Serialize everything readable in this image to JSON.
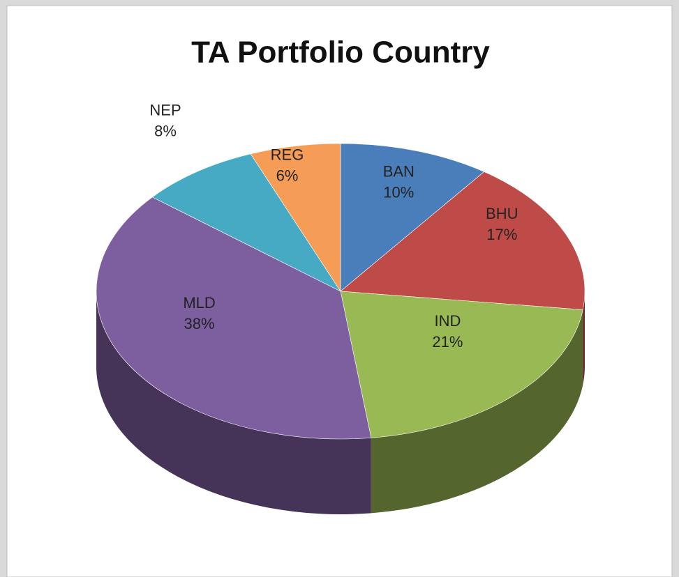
{
  "chart_data": {
    "type": "pie",
    "title": "TA Portfolio Country",
    "categories": [
      "BAN",
      "BHU",
      "IND",
      "MLD",
      "NEP",
      "REG"
    ],
    "values": [
      10,
      17,
      21,
      38,
      8,
      6
    ],
    "value_labels": [
      "10%",
      "17%",
      "21%",
      "38%",
      "8%",
      "6%"
    ],
    "colors": [
      "#4a7ebb",
      "#be4b48",
      "#98b954",
      "#7d5fa0",
      "#46aac5",
      "#f59d56"
    ]
  }
}
